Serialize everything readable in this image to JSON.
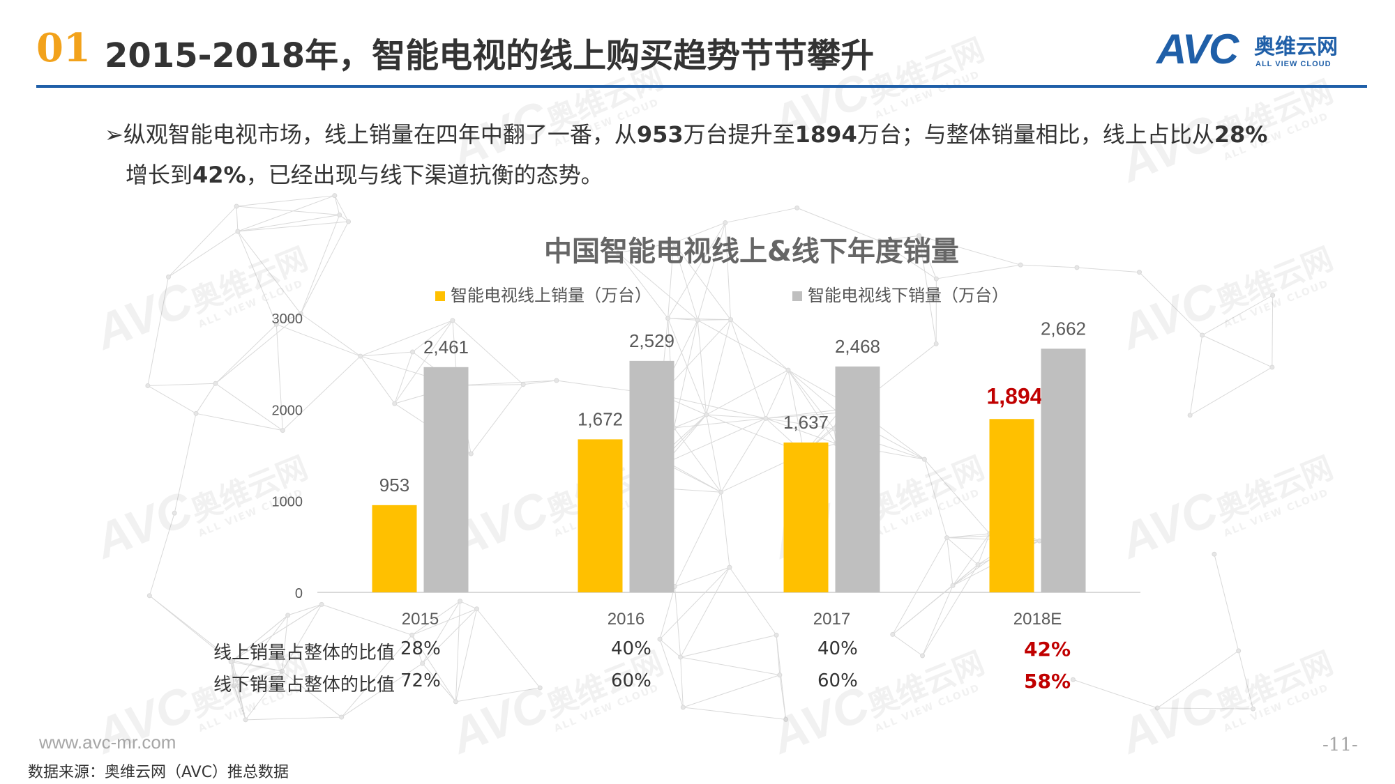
{
  "header": {
    "slide_number": "01",
    "title": "2015-2018年，智能电视的线上购买趋势节节攀升",
    "logo": {
      "mark": "AVC",
      "cn": "奥维云网",
      "en": "ALL VIEW CLOUD"
    }
  },
  "bullet": {
    "symbol": "➢",
    "parts": [
      "纵观智能电视市场，线上销量在四年中翻了一番，从",
      "953",
      "万台提升至",
      "1894",
      "万台；与整体销量相比，线上占比从",
      "28%"
    ],
    "line2_parts": [
      "增长到",
      "42%",
      "，已经出现与线下渠道抗衡的态势。"
    ]
  },
  "watermark": {
    "mark": "AVC",
    "cn": "奥维云网",
    "en": "ALL VIEW CLOUD"
  },
  "chart_data": {
    "type": "bar",
    "title": "中国智能电视线上&线下年度销量",
    "categories": [
      "2015",
      "2016",
      "2017",
      "2018E"
    ],
    "series": [
      {
        "name": "智能电视线上销量（万台）",
        "color": "#ffc000",
        "values": [
          953,
          1672,
          1637,
          1894
        ],
        "labels": [
          "953",
          "1,672",
          "1,637",
          "1,894"
        ]
      },
      {
        "name": "智能电视线下销量（万台）",
        "color": "#bfbfbf",
        "values": [
          2461,
          2529,
          2468,
          2662
        ],
        "labels": [
          "2,461",
          "2,529",
          "2,468",
          "2,662"
        ]
      }
    ],
    "ylim": [
      0,
      3000
    ],
    "yticks": [
      "0",
      "1000",
      "2000",
      "3000"
    ],
    "highlight": {
      "series": 0,
      "index": 3,
      "color": "#c00000"
    },
    "legend": "top",
    "grid": false
  },
  "ratio_table": {
    "rows": [
      {
        "label": "线上销量占整体的比值",
        "values": [
          "28%",
          "40%",
          "40%",
          "42%"
        ]
      },
      {
        "label": "线下销量占整体的比值",
        "values": [
          "72%",
          "60%",
          "60%",
          "58%"
        ]
      }
    ],
    "highlight_color": "#c00000"
  },
  "footer": {
    "url": "www.avc-mr.com",
    "source": "数据来源：奥维云网（AVC）推总数据",
    "page": "-11-"
  }
}
